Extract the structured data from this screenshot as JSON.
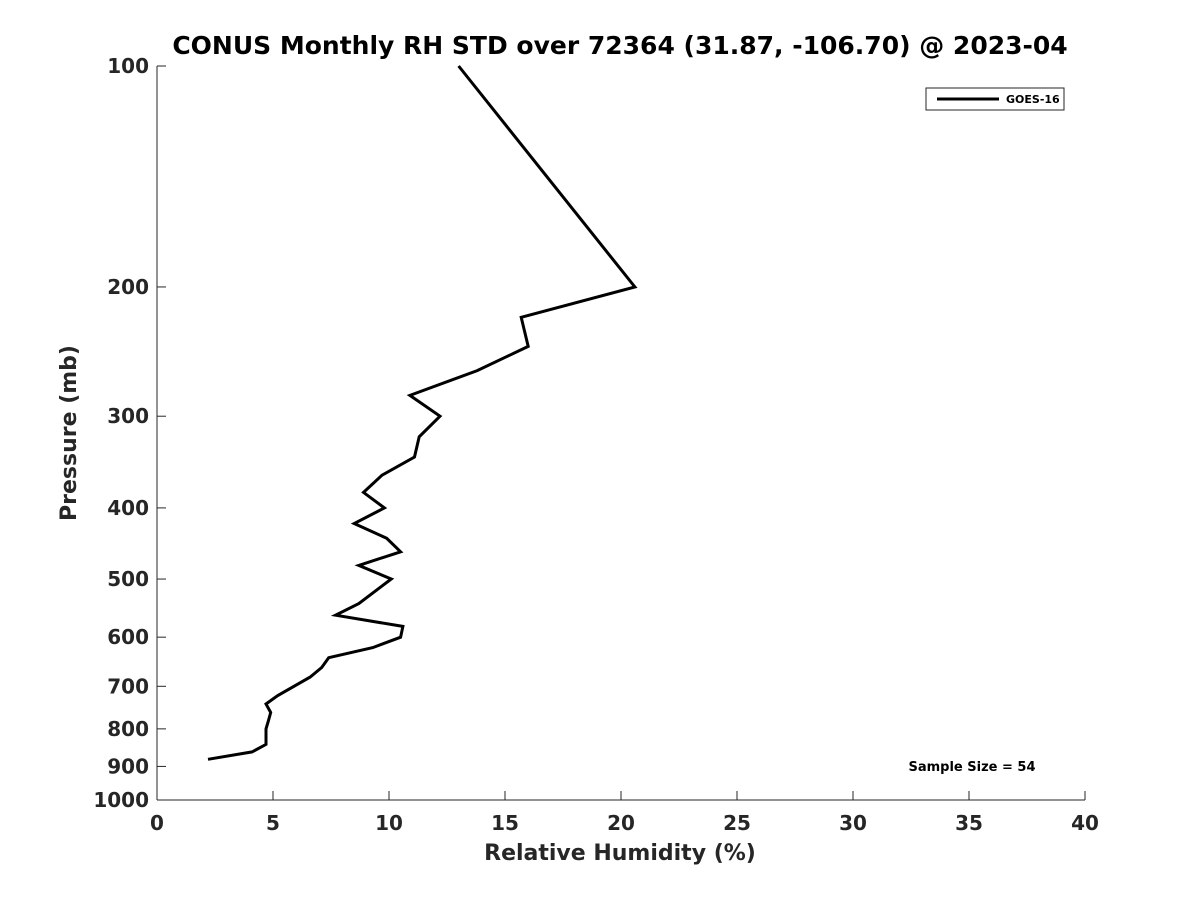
{
  "chart_data": {
    "type": "line",
    "title": "CONUS Monthly RH STD over 72364 (31.87, -106.70) @ 2023-04",
    "xlabel": "Relative Humidity (%)",
    "ylabel": "Pressure (mb)",
    "xlim": [
      0,
      40
    ],
    "ylim": [
      1000,
      100
    ],
    "y_scale": "log",
    "x_ticks": [
      0,
      5,
      10,
      15,
      20,
      25,
      30,
      35,
      40
    ],
    "y_ticks": [
      100,
      200,
      300,
      400,
      500,
      600,
      700,
      800,
      900,
      1000
    ],
    "grid": false,
    "legend": {
      "position": "top-right",
      "entries": [
        "GOES-16"
      ]
    },
    "annotation": "Sample Size = 54",
    "series": [
      {
        "name": "GOES-16",
        "color": "#000000",
        "points": [
          [
            13.0,
            100
          ],
          [
            20.6,
            200
          ],
          [
            15.7,
            220
          ],
          [
            16.0,
            241
          ],
          [
            13.8,
            260
          ],
          [
            10.9,
            281
          ],
          [
            12.2,
            300
          ],
          [
            11.3,
            320
          ],
          [
            11.1,
            341
          ],
          [
            9.7,
            361
          ],
          [
            8.9,
            381
          ],
          [
            9.8,
            400
          ],
          [
            8.5,
            420
          ],
          [
            9.9,
            440
          ],
          [
            10.5,
            459
          ],
          [
            8.7,
            479
          ],
          [
            10.1,
            500
          ],
          [
            8.7,
            540
          ],
          [
            7.7,
            560
          ],
          [
            10.6,
            580
          ],
          [
            10.5,
            600
          ],
          [
            9.3,
            620
          ],
          [
            7.4,
            640
          ],
          [
            7.1,
            660
          ],
          [
            6.6,
            680
          ],
          [
            5.2,
            721
          ],
          [
            4.7,
            740
          ],
          [
            4.9,
            760
          ],
          [
            4.8,
            780
          ],
          [
            4.7,
            800
          ],
          [
            4.7,
            840
          ],
          [
            4.1,
            860
          ],
          [
            2.2,
            880
          ]
        ]
      }
    ]
  }
}
